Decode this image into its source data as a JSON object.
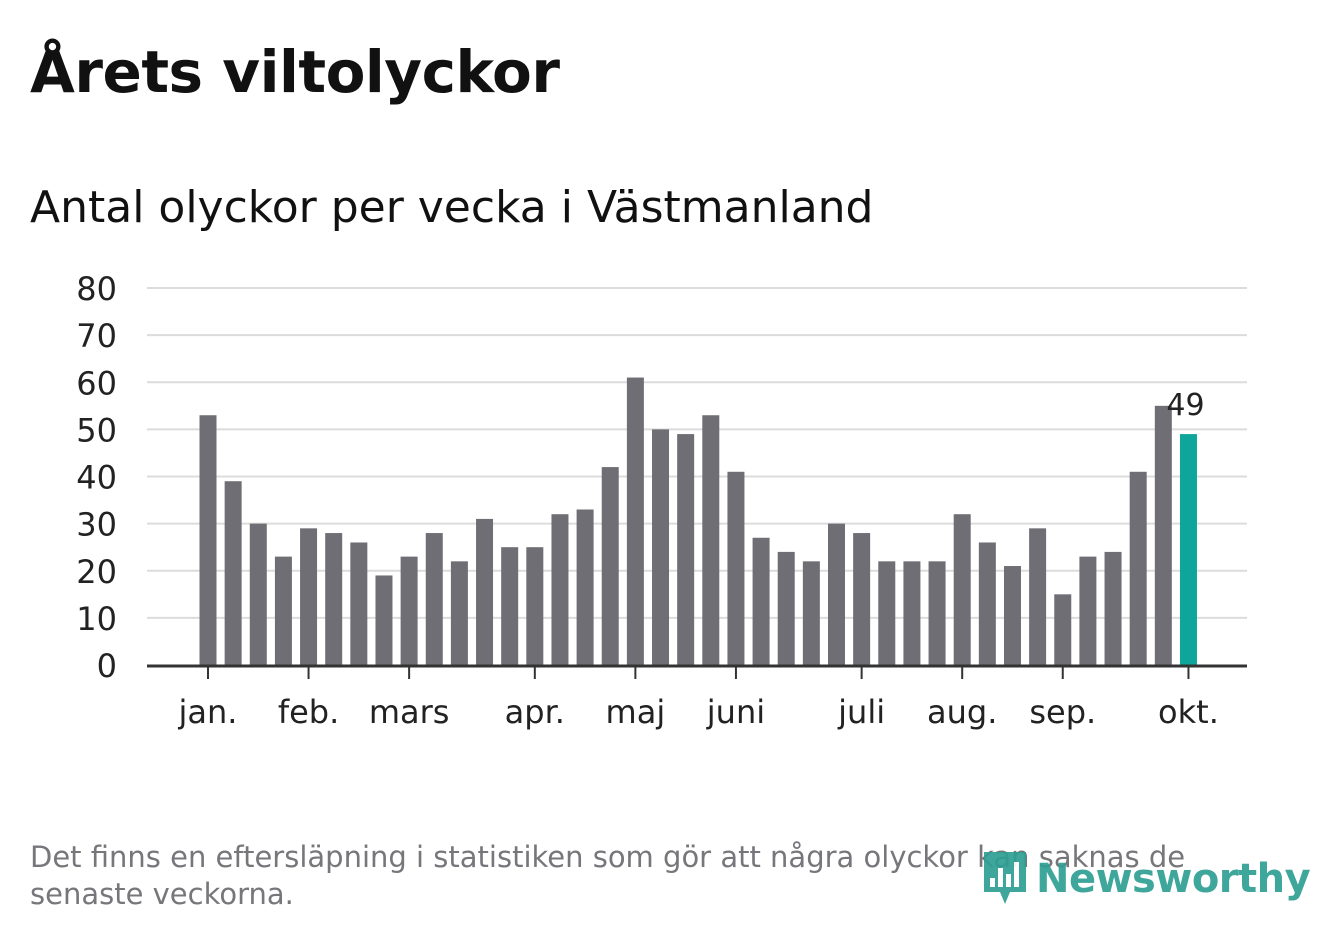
{
  "header": {
    "title": "Årets viltolyckor",
    "subtitle": "Antal olyckor per vecka i Västmanland"
  },
  "chart_data": {
    "type": "bar",
    "title": "Årets viltolyckor",
    "subtitle": "Antal olyckor per vecka i Västmanland",
    "xlabel": "",
    "ylabel": "",
    "ylim": [
      0,
      80
    ],
    "yticks": [
      0,
      10,
      20,
      30,
      40,
      50,
      60,
      70,
      80
    ],
    "grid": true,
    "values": [
      53,
      39,
      30,
      23,
      29,
      28,
      26,
      19,
      23,
      28,
      22,
      31,
      25,
      25,
      32,
      33,
      42,
      61,
      50,
      49,
      53,
      41,
      27,
      24,
      22,
      30,
      28,
      22,
      22,
      22,
      32,
      26,
      21,
      29,
      15,
      23,
      24,
      41,
      55,
      49
    ],
    "month_ticks": [
      {
        "label": "jan.",
        "position": 0
      },
      {
        "label": "feb.",
        "position": 4
      },
      {
        "label": "mars",
        "position": 8
      },
      {
        "label": "apr.",
        "position": 13
      },
      {
        "label": "maj",
        "position": 17
      },
      {
        "label": "juni",
        "position": 21
      },
      {
        "label": "juli",
        "position": 26
      },
      {
        "label": "aug.",
        "position": 30
      },
      {
        "label": "sep.",
        "position": 34
      },
      {
        "label": "okt.",
        "position": 39
      }
    ],
    "highlight": {
      "index": 39,
      "label": "49"
    },
    "colors": {
      "bar": "#6f6e74",
      "highlight": "#0ea59a",
      "grid": "#dcdcdc",
      "axis": "#333333",
      "text": "#222222"
    }
  },
  "footer": {
    "note": "Det finns en eftersläpning i statistiken som gör att några olyckor kan saknas de senaste veckorna.",
    "brand": "Newsworthy",
    "brand_icon": "newsworthy-logo-icon"
  }
}
